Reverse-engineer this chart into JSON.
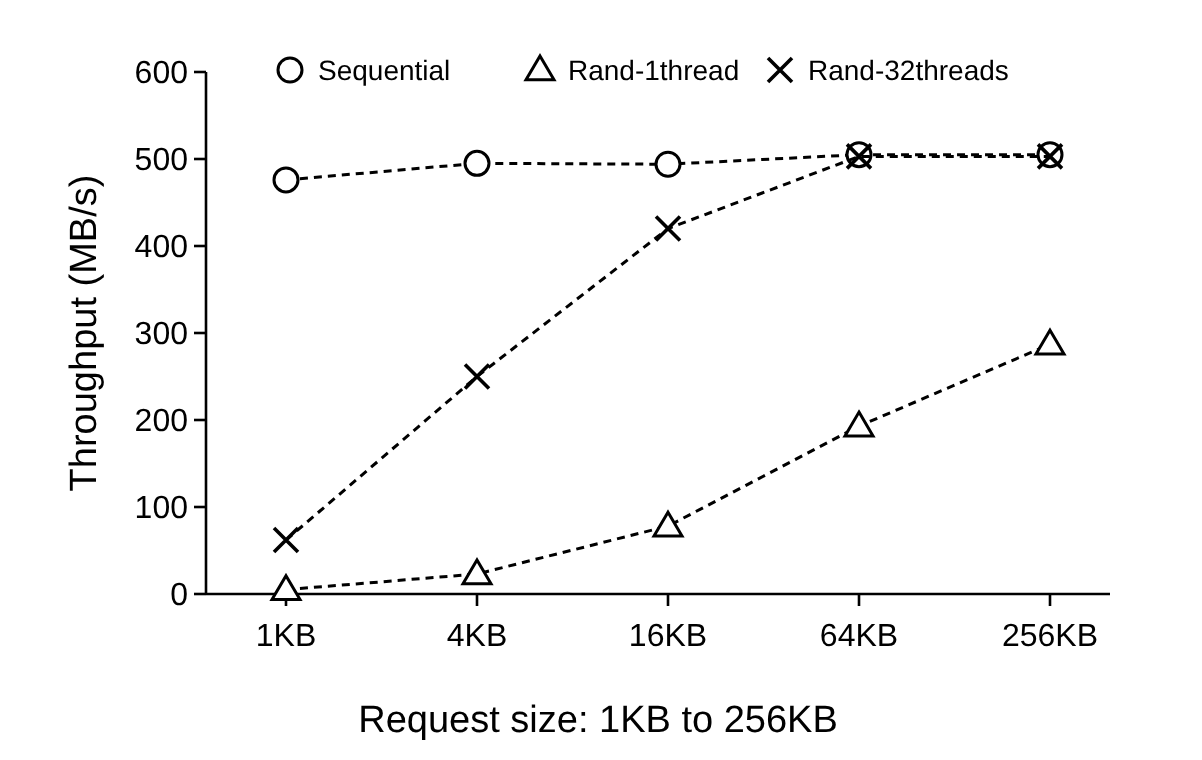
{
  "chart_data": {
    "type": "line",
    "xlabel": "Request size: 1KB to 256KB",
    "ylabel": "Throughput (MB/s)",
    "categories": [
      "1KB",
      "4KB",
      "16KB",
      "64KB",
      "256KB"
    ],
    "ylim": [
      0,
      600
    ],
    "yticks": [
      0,
      100,
      200,
      300,
      400,
      500,
      600
    ],
    "grid": false,
    "legend": "top",
    "line_style": "dashed",
    "series": [
      {
        "name": "Sequential",
        "color": "#000000",
        "marker": "circle",
        "values": [
          476,
          495,
          494,
          505,
          505
        ]
      },
      {
        "name": "Rand-1thread",
        "color": "#000000",
        "marker": "triangle",
        "values": [
          5,
          23,
          78,
          193,
          287
        ]
      },
      {
        "name": "Rand-32threads",
        "color": "#000000",
        "marker": "cross",
        "values": [
          62,
          250,
          420,
          503,
          503
        ]
      }
    ]
  }
}
